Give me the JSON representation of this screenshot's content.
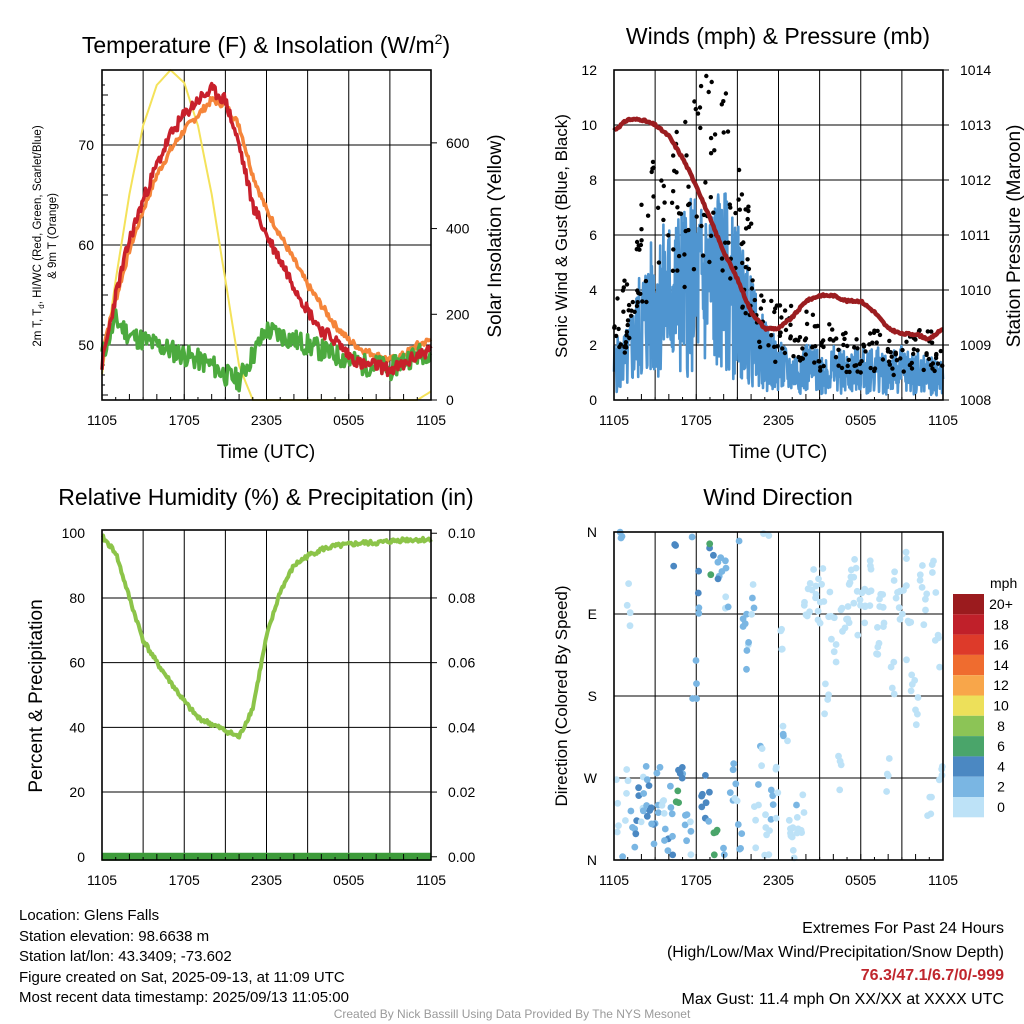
{
  "x_ticks": [
    "1105",
    "1705",
    "2305",
    "0505",
    "1105"
  ],
  "panels": {
    "temperature": {
      "title_main": "Temperature (F) & Insolation (W/m",
      "title_sup": "2",
      "title_end": ")",
      "ylabel_line1": "2m T, T",
      "ylabel_sub": "d",
      "ylabel_line1_end": ", HI/WC (Red, Green, Scarlet/Blue)",
      "ylabel_line2": "& 9m T (Orange)",
      "y2label": "Solar Insolation (Yellow)",
      "xlabel": "Time (UTC)"
    },
    "winds": {
      "title": "Winds (mph) & Pressure (mb)",
      "ylabel": "Sonic Wind & Gust (Blue, Black)",
      "y2label": "Station Pressure (Maroon)",
      "xlabel": "Time (UTC)"
    },
    "humidity": {
      "title": "Relative Humidity (%) & Precipitation (in)",
      "ylabel": "Percent & Precipitation"
    },
    "direction": {
      "title": "Wind Direction",
      "ylabel": "Direction (Colored By Speed)",
      "legend_title": "mph",
      "legend_labels": [
        "20+",
        "18",
        "16",
        "14",
        "12",
        "10",
        "8",
        "6",
        "4",
        "2",
        "0"
      ]
    }
  },
  "info": {
    "location": "Location: Glens Falls",
    "elevation": "Station elevation: 98.6638 m",
    "latlon": "Station lat/lon: 43.3409; -73.602",
    "created": "Figure created on Sat, 2025-09-13, at 11:09 UTC",
    "recent": "Most recent data timestamp: 2025/09/13 11:05:00"
  },
  "extremes": {
    "title": "Extremes For Past 24 Hours",
    "subtitle": "(High/Low/Max Wind/Precipitation/Snow Depth)",
    "values": "76.3/47.1/6.7/0/-999",
    "gust": "Max Gust: 11.4 mph On XX/XX at XXXX UTC"
  },
  "footer": "Created By Nick Bassill Using Data Provided By The NYS Mesonet",
  "colors": {
    "temp_2m": "#c8202b",
    "temp_9m": "#f5853a",
    "dewpoint": "#4caa3e",
    "insolation": "#f4e25a",
    "wind": "#4f95d0",
    "gust": "#000000",
    "pressure": "#9b1d20",
    "rh": "#8cc449",
    "precip": "#3d9b3a",
    "legend_scale": [
      "#9b1b1e",
      "#c0202a",
      "#dd3a2a",
      "#ef6c2f",
      "#f8a64a",
      "#ede05a",
      "#8cc456",
      "#4aa56a",
      "#4b88c2",
      "#7ab6e3",
      "#bde2f7"
    ]
  },
  "chart_data": [
    {
      "type": "line",
      "panel": "temperature",
      "x_hours_after_1105": [
        0,
        1,
        2,
        3,
        4,
        5,
        6,
        7,
        8,
        9,
        10,
        11,
        12,
        13,
        14,
        15,
        16,
        17,
        18,
        19,
        20,
        21,
        22,
        23,
        24
      ],
      "ylim": [
        44.5,
        77.5
      ],
      "yticks": [
        50,
        60,
        70
      ],
      "y2lim": [
        0,
        770
      ],
      "y2ticks": [
        0,
        200,
        400,
        600
      ],
      "series": [
        {
          "key": "t2m",
          "values": [
            48,
            55,
            60.5,
            64.5,
            68,
            71,
            73,
            74.5,
            75.5,
            74.5,
            70,
            64,
            61,
            58.5,
            56,
            53.5,
            51.5,
            50.5,
            49,
            48,
            48,
            47.5,
            48,
            49,
            49.5
          ]
        },
        {
          "key": "t9m",
          "values": [
            49.5,
            54.5,
            59.5,
            63.5,
            67,
            69.5,
            71.5,
            73,
            74.5,
            74,
            72,
            67,
            63.5,
            61,
            58.5,
            56,
            54,
            52,
            50.5,
            49.5,
            49,
            48.5,
            49,
            50,
            50.5
          ]
        },
        {
          "key": "td",
          "values": [
            49,
            52.5,
            51,
            50.5,
            50,
            49.5,
            49,
            48.5,
            48,
            47,
            46.5,
            49,
            51.5,
            51,
            50.5,
            50,
            49.5,
            49,
            48.5,
            48,
            48,
            47.5,
            48.5,
            49,
            49.5
          ]
        },
        {
          "key": "solar",
          "values": [
            60,
            280,
            480,
            640,
            735,
            770,
            740,
            640,
            480,
            280,
            80,
            0,
            0,
            0,
            0,
            0,
            0,
            0,
            0,
            0,
            0,
            0,
            0,
            0,
            20
          ]
        }
      ]
    },
    {
      "type": "scatter",
      "panel": "winds",
      "x_hours_after_1105": [
        0,
        1,
        2,
        3,
        4,
        5,
        6,
        7,
        8,
        9,
        10,
        11,
        12,
        13,
        14,
        15,
        16,
        17,
        18,
        19,
        20,
        21,
        22,
        23,
        24
      ],
      "ylim": [
        0,
        12
      ],
      "yticks": [
        0,
        2,
        4,
        6,
        8,
        10,
        12
      ],
      "y2lim": [
        1008,
        1014
      ],
      "y2ticks": [
        1008,
        1009,
        1010,
        1011,
        1012,
        1013,
        1014
      ],
      "series": [
        {
          "key": "wind",
          "values": [
            1.2,
            1.5,
            2.8,
            3.4,
            3.8,
            4.0,
            4.2,
            4.3,
            4.3,
            3.6,
            2.5,
            1.6,
            1.2,
            1.0,
            1.2,
            1.0,
            1.1,
            1.0,
            1.1,
            1.1,
            1.0,
            1.1,
            1.0,
            0.9,
            0.8
          ]
        },
        {
          "key": "gust",
          "values": [
            3.2,
            3.0,
            5.0,
            6.2,
            7.0,
            7.3,
            7.8,
            8.4,
            8.0,
            6.6,
            4.6,
            2.9,
            2.4,
            2.5,
            2.6,
            1.8,
            2.0,
            1.8,
            1.6,
            1.8,
            1.6,
            1.4,
            1.8,
            1.8,
            1.4
          ]
        },
        {
          "key": "pressure",
          "values": [
            1012.9,
            1013.1,
            1013.1,
            1013.0,
            1012.8,
            1012.4,
            1011.9,
            1011.3,
            1010.7,
            1010.2,
            1009.6,
            1009.3,
            1009.3,
            1009.5,
            1009.8,
            1009.9,
            1009.9,
            1009.8,
            1009.8,
            1009.6,
            1009.3,
            1009.2,
            1009.2,
            1009.1,
            1009.3
          ]
        }
      ]
    },
    {
      "type": "line",
      "panel": "humidity",
      "x_hours_after_1105": [
        0,
        1,
        2,
        3,
        4,
        5,
        6,
        7,
        8,
        9,
        10,
        11,
        12,
        13,
        14,
        15,
        16,
        17,
        18,
        19,
        20,
        21,
        22,
        23,
        24
      ],
      "ylim": [
        -1,
        101
      ],
      "yticks": [
        0,
        20,
        40,
        60,
        80,
        100
      ],
      "y2ticks": [
        "0.00",
        "0.02",
        "0.04",
        "0.06",
        "0.08",
        "0.10"
      ],
      "series": [
        {
          "key": "rh",
          "values": [
            99,
            94,
            80,
            67,
            60,
            54,
            48,
            43,
            41,
            39,
            37,
            46,
            68,
            82,
            90,
            93,
            95,
            96,
            96.5,
            97,
            97,
            97.5,
            98,
            98,
            98
          ]
        },
        {
          "key": "precip",
          "values": [
            0,
            0,
            0,
            0,
            0,
            0,
            0,
            0,
            0,
            0,
            0,
            0,
            0,
            0,
            0,
            0,
            0,
            0,
            0,
            0,
            0,
            0,
            0,
            0,
            0
          ]
        }
      ]
    },
    {
      "type": "scatter",
      "panel": "direction",
      "y_ticks": [
        "N",
        "W",
        "S",
        "E",
        "N"
      ],
      "x_hours_after_1105": [
        0.3,
        0.6,
        0.9,
        1.1,
        1.4,
        1.7,
        2.0,
        2.3,
        2.6,
        2.9,
        3.2,
        3.5,
        3.8,
        4.1,
        4.4,
        4.7,
        5.0,
        5.3,
        5.6,
        5.9,
        6.2,
        6.5,
        6.8,
        7.1,
        7.4,
        7.7,
        8.0,
        8.3,
        8.6,
        8.9,
        9.2,
        9.5,
        9.8,
        10.1,
        10.4,
        10.7,
        11.0,
        11.3,
        11.6,
        11.9,
        12.2,
        12.5,
        12.8,
        13.1,
        13.4,
        13.7,
        14.0,
        14.3,
        14.6,
        14.9,
        15.2,
        15.5,
        15.8,
        16.1,
        16.4,
        16.7,
        17.0,
        17.3,
        17.6,
        17.9,
        18.2,
        18.5,
        18.8,
        19.1,
        19.4,
        19.7,
        20.0,
        20.3,
        20.6,
        20.9,
        21.2,
        21.5,
        21.8,
        22.1,
        22.4,
        22.7,
        23.0,
        23.3,
        23.6,
        23.9
      ],
      "direction_deg": [
        60,
        20,
        70,
        280,
        40,
        50,
        65,
        75,
        60,
        45,
        80,
        70,
        30,
        55,
        340,
        70,
        85,
        40,
        20,
        190,
        300,
        75,
        65,
        330,
        10,
        320,
        345,
        300,
        80,
        60,
        15,
        240,
        210,
        290,
        40,
        110,
        20,
        5,
        60,
        75,
        230,
        150,
        30,
        10,
        45,
        50,
        260,
        275,
        300,
        290,
        310,
        180,
        270,
        240,
        95,
        260,
        280,
        300,
        305,
        275,
        290,
        300,
        320,
        250,
        265,
        285,
        90,
        205,
        300,
        290,
        310,
        240,
        200,
        150,
        295,
        280,
        60,
        300,
        240,
        100
      ],
      "speed_mph": [
        1,
        2,
        1,
        1,
        3,
        4,
        2,
        3,
        5,
        4,
        3,
        2,
        4,
        3,
        5,
        6,
        4,
        3,
        2,
        3,
        4,
        5,
        4,
        6,
        7,
        4,
        3,
        2,
        3,
        2,
        3,
        3,
        2,
        2,
        1,
        2,
        1,
        1,
        3,
        2,
        1,
        2,
        1,
        1,
        2,
        1,
        1,
        1,
        1,
        1,
        1,
        1,
        1,
        1,
        1,
        1,
        1,
        1,
        1,
        1,
        1,
        1,
        1,
        1,
        1,
        1,
        1,
        1,
        1,
        1,
        1,
        1,
        1,
        1,
        1,
        1,
        1,
        1,
        1,
        1
      ]
    }
  ]
}
